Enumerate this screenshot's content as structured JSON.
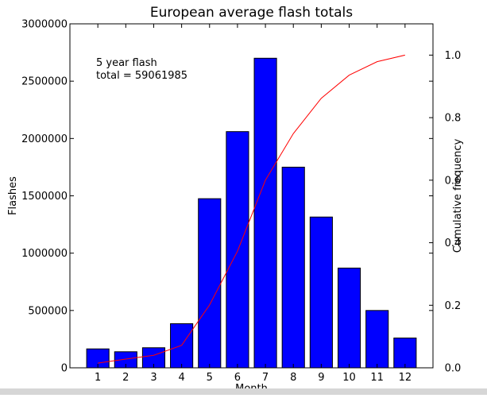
{
  "chart_data": {
    "type": "bar",
    "title": "European average flash totals",
    "xlabel": "Month",
    "ylabel": "Flashes",
    "y2label": "Cumulative frequency",
    "annotation_lines": [
      "5 year flash",
      "total = 59061985"
    ],
    "categories": [
      "1",
      "2",
      "3",
      "4",
      "5",
      "6",
      "7",
      "8",
      "9",
      "10",
      "11",
      "12"
    ],
    "ylim": [
      0,
      3000000
    ],
    "yticks": [
      "0",
      "500000",
      "1000000",
      "1500000",
      "2000000",
      "2500000",
      "3000000"
    ],
    "y2lim": [
      0,
      1.1
    ],
    "y2ticks": [
      "0.0",
      "0.2",
      "0.4",
      "0.6",
      "0.8",
      "1.0"
    ],
    "series": [
      {
        "values": [
          165000,
          140000,
          175000,
          385000,
          1475000,
          2060000,
          2700000,
          1750000,
          1315000,
          870000,
          500000,
          260000
        ],
        "color": "#0000ff"
      },
      {
        "values": [
          0.015,
          0.028,
          0.04,
          0.072,
          0.201,
          0.373,
          0.6,
          0.749,
          0.862,
          0.936,
          0.979,
          1.0
        ],
        "color": "#ff0000",
        "axis": "right"
      }
    ],
    "grid": false
  }
}
